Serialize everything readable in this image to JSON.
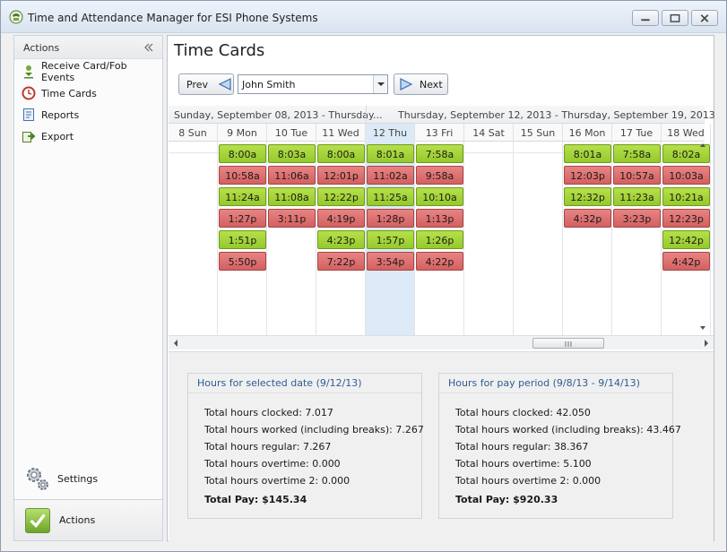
{
  "window": {
    "title": "Time and Attendance Manager for ESI Phone Systems"
  },
  "sidebar": {
    "header": "Actions",
    "items": [
      {
        "label": "Receive Card/Fob Events",
        "icon": "download-person-icon"
      },
      {
        "label": "Time Cards",
        "icon": "timecard-icon"
      },
      {
        "label": "Reports",
        "icon": "report-icon"
      },
      {
        "label": "Export",
        "icon": "export-icon"
      }
    ],
    "settings_label": "Settings",
    "actions_button_label": "Actions"
  },
  "main": {
    "title": "Time Cards",
    "prev_label": "Prev",
    "next_label": "Next",
    "employee": "John Smith",
    "ranges": [
      "Sunday, September 08, 2013 - Thursday...",
      "Thursday, September 12, 2013 - Thursday, September 19, 2013"
    ],
    "days": [
      "8 Sun",
      "9 Mon",
      "10 Tue",
      "11 Wed",
      "12 Thu",
      "13 Fri",
      "14 Sat",
      "15 Sun",
      "16 Mon",
      "17 Tue",
      "18 Wed"
    ],
    "selected_day_index": 4,
    "punches": [
      {
        "day": 1,
        "times": [
          "8:00a",
          "10:58a",
          "11:24a",
          "1:27p",
          "1:51p",
          "5:50p"
        ]
      },
      {
        "day": 2,
        "times": [
          "8:03a",
          "11:06a",
          "11:08a",
          "3:11p"
        ]
      },
      {
        "day": 3,
        "times": [
          "8:00a",
          "12:01p",
          "12:22p",
          "4:19p",
          "4:23p",
          "7:22p"
        ]
      },
      {
        "day": 4,
        "times": [
          "8:01a",
          "11:02a",
          "11:25a",
          "1:28p",
          "1:57p",
          "3:54p"
        ]
      },
      {
        "day": 5,
        "times": [
          "7:58a",
          "9:58a",
          "10:10a",
          "1:13p",
          "1:26p",
          "4:22p"
        ]
      },
      {
        "day": 8,
        "times": [
          "8:01a",
          "12:03p",
          "12:32p",
          "4:32p"
        ]
      },
      {
        "day": 9,
        "times": [
          "7:58a",
          "10:57a",
          "11:23a",
          "3:23p"
        ]
      },
      {
        "day": 10,
        "times": [
          "8:02a",
          "10:03a",
          "10:21a",
          "12:23p",
          "12:42p",
          "4:42p"
        ]
      }
    ]
  },
  "summary": {
    "selected": {
      "title": "Hours for selected date (9/12/13)",
      "clocked": "Total hours clocked: 7.017",
      "worked": "Total hours worked (including breaks): 7.267",
      "regular": "Total hours regular: 7.267",
      "overtime": "Total hours overtime: 0.000",
      "overtime2": "Total hours overtime 2: 0.000",
      "pay": "Total Pay: $145.34"
    },
    "period": {
      "title": "Hours for pay period (9/8/13 - 9/14/13)",
      "clocked": "Total hours clocked: 42.050",
      "worked": "Total hours worked (including breaks): 43.467",
      "regular": "Total hours regular: 38.367",
      "overtime": "Total hours overtime: 5.100",
      "overtime2": "Total hours overtime 2: 0.000",
      "pay": "Total Pay: $920.33"
    }
  },
  "colors": {
    "punch_in": "#a6d63a",
    "punch_out": "#dd7070",
    "selected_day": "#dbeaf6",
    "panel_title": "#2d5c94"
  }
}
